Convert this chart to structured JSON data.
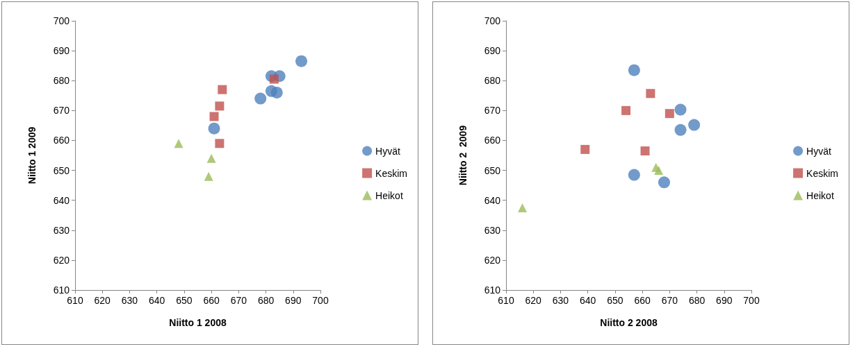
{
  "chart_data": [
    {
      "type": "scatter",
      "xlabel": "Niitto 1 2008",
      "ylabel": "Niitto 1 2009",
      "xlim": [
        610,
        700
      ],
      "ylim": [
        610,
        700
      ],
      "xticks": [
        610,
        620,
        630,
        640,
        650,
        660,
        670,
        680,
        690,
        700
      ],
      "yticks": [
        610,
        620,
        630,
        640,
        650,
        660,
        670,
        680,
        690,
        700
      ],
      "grid": false,
      "legend": "right",
      "series": [
        {
          "name": "Hyvät",
          "color": "#4f81bd",
          "marker": "circle",
          "x": [
            682,
            685,
            682,
            684,
            678,
            661,
            693
          ],
          "values": [
            681.5,
            681.5,
            676.5,
            676,
            674,
            664,
            686.5
          ]
        },
        {
          "name": "Keskim",
          "color": "#c0504d",
          "marker": "square",
          "x": [
            683,
            664,
            663,
            661,
            663
          ],
          "values": [
            680.5,
            677,
            671.5,
            668,
            659
          ]
        },
        {
          "name": "Heikot",
          "color": "#9bbb59",
          "marker": "triangle",
          "x": [
            648,
            660,
            659
          ],
          "values": [
            659,
            654,
            648
          ]
        }
      ]
    },
    {
      "type": "scatter",
      "xlabel": "Niitto 2 2008",
      "ylabel": "Niitto 2  2009",
      "xlim": [
        610,
        700
      ],
      "ylim": [
        610,
        700
      ],
      "xticks": [
        610,
        620,
        630,
        640,
        650,
        660,
        670,
        680,
        690,
        700
      ],
      "yticks": [
        610,
        620,
        630,
        640,
        650,
        660,
        670,
        680,
        690,
        700
      ],
      "grid": false,
      "legend": "right",
      "series": [
        {
          "name": "Hyvät",
          "color": "#4f81bd",
          "marker": "circle",
          "x": [
            657,
            657,
            668,
            674,
            674,
            679
          ],
          "values": [
            683.5,
            648.5,
            646,
            670.3,
            663.5,
            665.2
          ]
        },
        {
          "name": "Keskim",
          "color": "#c0504d",
          "marker": "square",
          "x": [
            654,
            663,
            670,
            639,
            661
          ],
          "values": [
            670,
            675.7,
            669,
            657,
            656.5
          ]
        },
        {
          "name": "Heikot",
          "color": "#9bbb59",
          "marker": "triangle",
          "x": [
            665,
            666,
            616
          ],
          "values": [
            651,
            650,
            637.5
          ]
        }
      ]
    }
  ]
}
